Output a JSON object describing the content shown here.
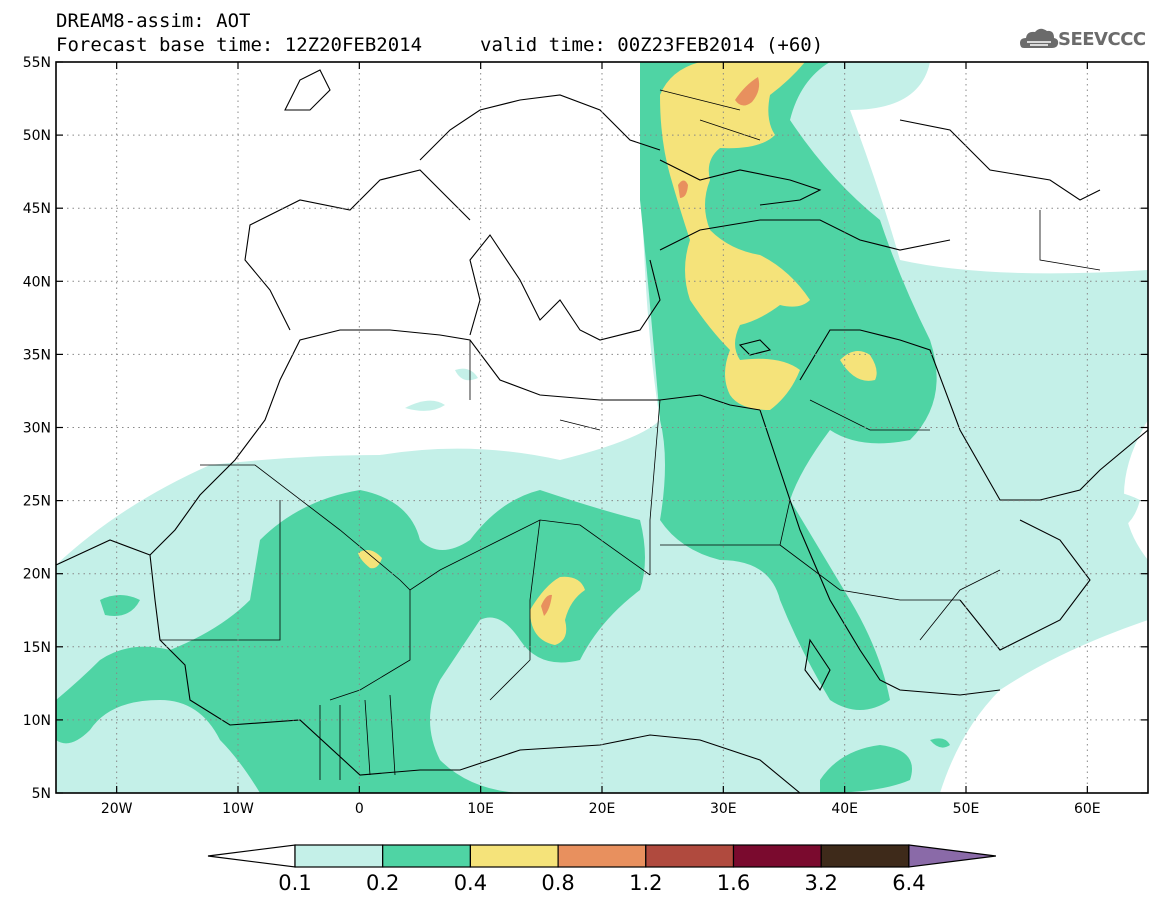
{
  "header": {
    "line1": "DREAM8-assim: AOT",
    "line2_left": "Forecast base time: 12Z20FEB2014",
    "line2_right": "valid time: 00Z23FEB2014 (+60)"
  },
  "logo": {
    "text": "SEEVCCC",
    "icon": "cloud-icon"
  },
  "map": {
    "lat_labels": [
      "55N",
      "50N",
      "45N",
      "40N",
      "35N",
      "30N",
      "25N",
      "20N",
      "15N",
      "10N",
      "5N"
    ],
    "lon_labels": [
      "20W",
      "10W",
      "0",
      "10E",
      "20E",
      "30E",
      "40E",
      "50E",
      "60E"
    ]
  },
  "colorbar": {
    "labels": [
      "0.1",
      "0.2",
      "0.4",
      "0.8",
      "1.2",
      "1.6",
      "3.2",
      "6.4"
    ],
    "colors": [
      "#ffffff",
      "#c4f0e8",
      "#4fd4a4",
      "#f5e37a",
      "#e8905e",
      "#b04a3e",
      "#7a0a2e",
      "#3e2a1a",
      "#8a6aa8"
    ]
  },
  "field_colors": {
    "level_0_1": "#c4f0e8",
    "level_0_2": "#4fd4a4",
    "level_0_4": "#f5e37a",
    "level_0_8": "#e8905e"
  }
}
